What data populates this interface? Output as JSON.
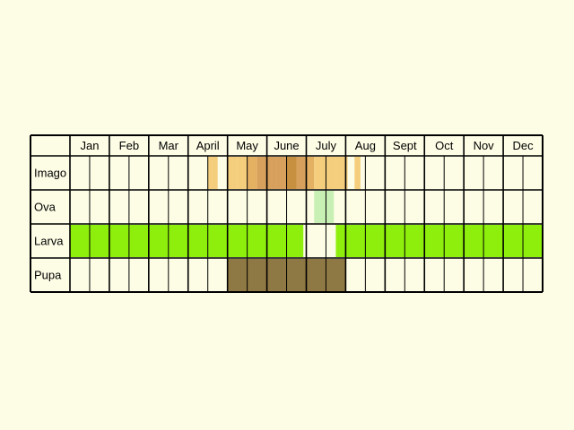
{
  "months": [
    "Jan",
    "Feb",
    "Mar",
    "April",
    "May",
    "June",
    "July",
    "Aug",
    "Sept",
    "Oct",
    "Nov",
    "Dec"
  ],
  "rows": [
    {
      "label": "Imago",
      "segments": [
        {
          "start": 7.0,
          "end": 7.5,
          "color": "#f4ce7c"
        },
        {
          "start": 8.0,
          "end": 8.5,
          "color": "#f4ce7c"
        },
        {
          "start": 8.5,
          "end": 9.0,
          "color": "#f4ce7c"
        },
        {
          "start": 9.0,
          "end": 9.5,
          "color": "#e4b062"
        },
        {
          "start": 9.5,
          "end": 10.0,
          "color": "#d7a05c"
        },
        {
          "start": 10.0,
          "end": 10.5,
          "color": "#d7a05c"
        },
        {
          "start": 10.5,
          "end": 11.0,
          "color": "#d7a05c"
        },
        {
          "start": 11.0,
          "end": 11.5,
          "color": "#c79040"
        },
        {
          "start": 11.5,
          "end": 12.0,
          "color": "#d7a05c"
        },
        {
          "start": 12.0,
          "end": 12.4,
          "color": "#e4b062"
        },
        {
          "start": 12.4,
          "end": 12.75,
          "color": "#f4ce7c"
        },
        {
          "start": 12.75,
          "end": 13.0,
          "color": "#f4ce7c"
        },
        {
          "start": 13.0,
          "end": 13.5,
          "color": "#f4ce7c"
        },
        {
          "start": 13.5,
          "end": 14.0,
          "color": "#f4ce7c"
        },
        {
          "start": 14.0,
          "end": 14.1,
          "color": "#f4ce7c"
        },
        {
          "start": 14.45,
          "end": 14.75,
          "color": "#f4ce7c"
        }
      ]
    },
    {
      "label": "Ova",
      "segments": [
        {
          "start": 12.4,
          "end": 13.4,
          "color": "#c8f0b4"
        }
      ]
    },
    {
      "label": "Larva",
      "segments": [
        {
          "start": 0,
          "end": 11.85,
          "color": "#8fef0c"
        },
        {
          "start": 13.5,
          "end": 24,
          "color": "#8fef0c"
        }
      ]
    },
    {
      "label": "Pupa",
      "segments": [
        {
          "start": 8.0,
          "end": 14.0,
          "color": "#8e7843"
        }
      ]
    }
  ]
}
